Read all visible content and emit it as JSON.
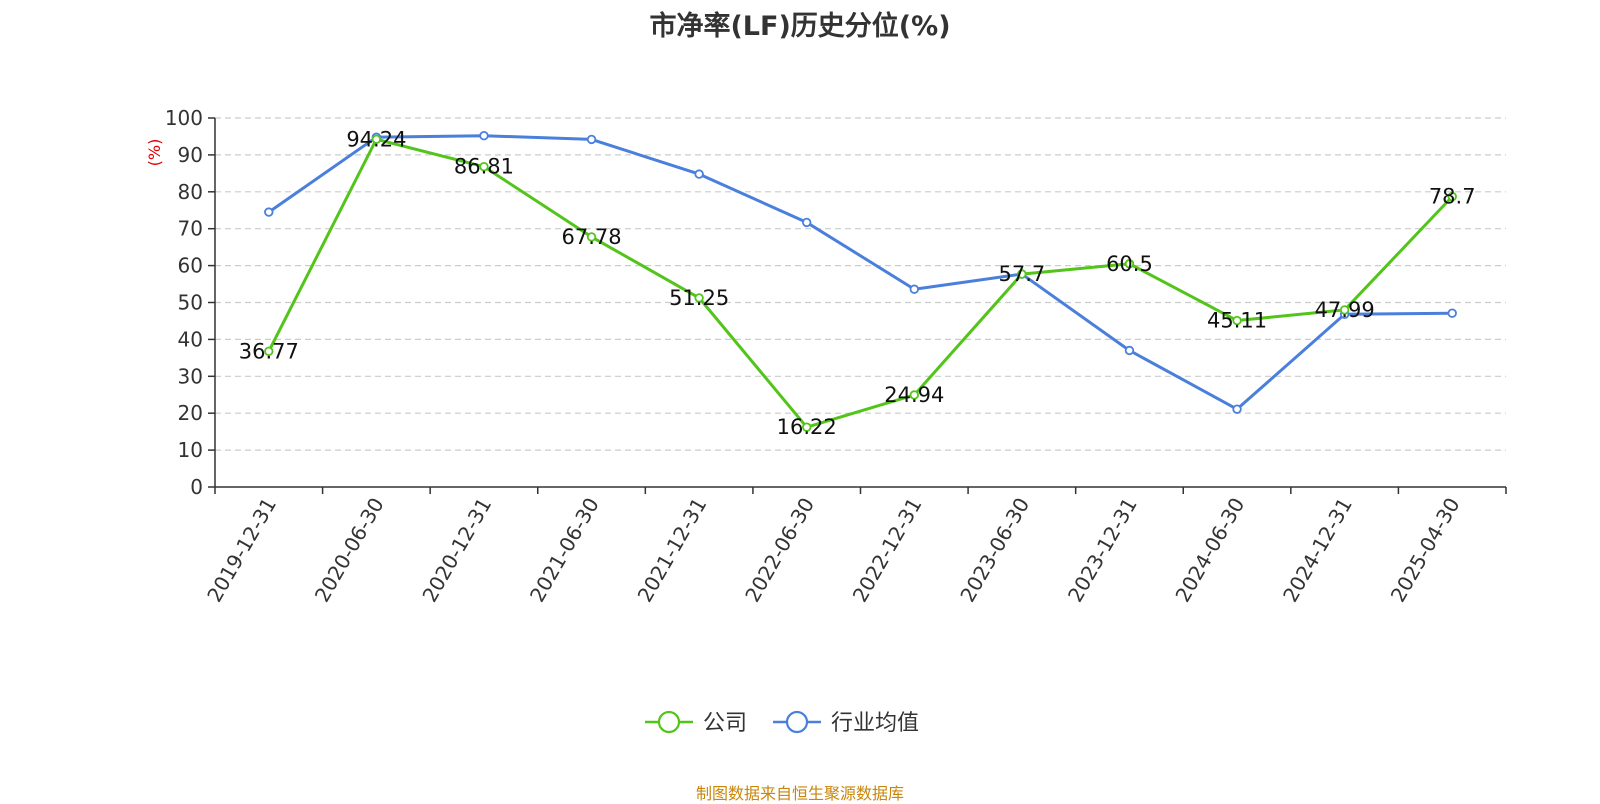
{
  "chart_data": {
    "type": "line",
    "title": "市净率(LF)历史分位(%)",
    "ylabel": "(%)",
    "ylim": [
      0,
      100
    ],
    "yticks": [
      0,
      10,
      20,
      30,
      40,
      50,
      60,
      70,
      80,
      90,
      100
    ],
    "grid": true,
    "legend_position": "bottom",
    "categories": [
      "2019-12-31",
      "2020-06-30",
      "2020-12-31",
      "2021-06-30",
      "2021-12-31",
      "2022-06-30",
      "2022-12-31",
      "2023-06-30",
      "2023-12-31",
      "2024-06-30",
      "2024-12-31",
      "2025-04-30"
    ],
    "series": [
      {
        "name": "公司",
        "color": "#52c41a",
        "labels": true,
        "values": [
          36.77,
          94.24,
          86.81,
          67.78,
          51.25,
          16.22,
          24.94,
          57.7,
          60.5,
          45.11,
          47.99,
          78.7
        ]
      },
      {
        "name": "行业均值",
        "color": "#4a7fdc",
        "labels": false,
        "values": [
          74.5,
          94.8,
          95.2,
          94.2,
          84.8,
          71.7,
          53.6,
          57.7,
          37.0,
          21.1,
          46.8,
          47.1
        ]
      }
    ]
  },
  "source_note": "制图数据来自恒生聚源数据库"
}
